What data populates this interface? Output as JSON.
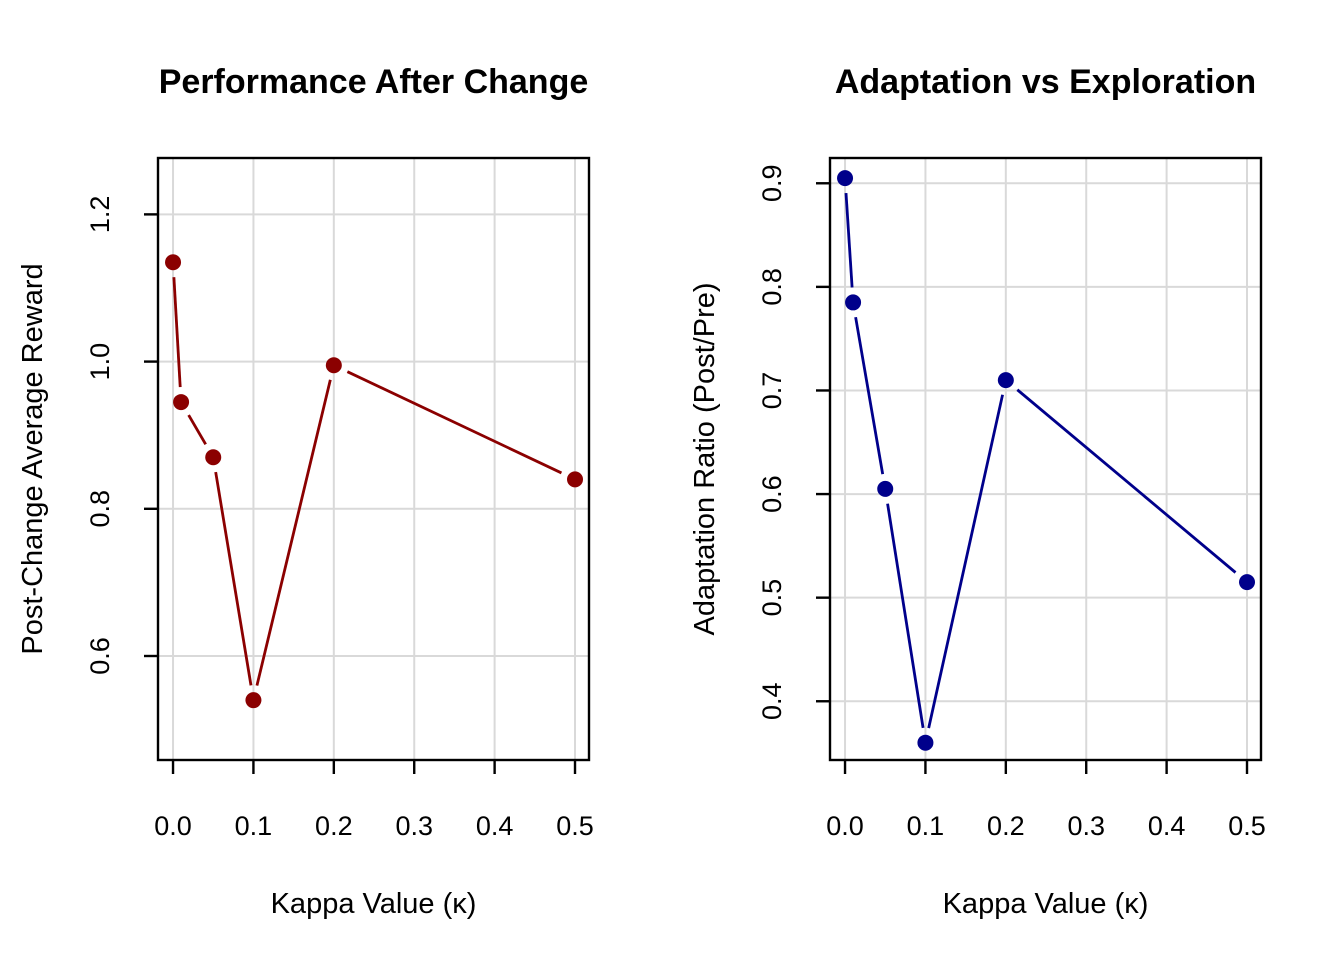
{
  "figure": {
    "background": "#FFFFFF",
    "axis_color": "#000000",
    "text_color": "#000000"
  },
  "chart_data": [
    {
      "type": "line",
      "title": "Performance After Change",
      "xlabel": "Kappa Value (κ)",
      "ylabel": "Post-Change Average Reward",
      "series_color": "#8B0000",
      "marker": "filled-circle",
      "line_type": "points-with-gapped-segments",
      "x": [
        0,
        0.01,
        0.05,
        0.1,
        0.2,
        0.5
      ],
      "values": [
        1.135,
        0.945,
        0.87,
        0.54,
        0.995,
        0.84
      ],
      "xticks": [
        0,
        0.1,
        0.2,
        0.3,
        0.4,
        0.5
      ],
      "xtick_labels": [
        "0.0",
        "0.1",
        "0.2",
        "0.3",
        "0.4",
        "0.5"
      ],
      "yticks": [
        0.6,
        0.8,
        1.0,
        1.2
      ],
      "ytick_labels": [
        "0.6",
        "0.8",
        "1.0",
        "1.2"
      ],
      "xlim": [
        -0.0187,
        0.5174
      ],
      "ylim": [
        0.4587,
        1.2766
      ],
      "grid": true,
      "grid_color": "#D9D9D9",
      "legend": "none"
    },
    {
      "type": "line",
      "title": "Adaptation vs Exploration",
      "xlabel": "Kappa Value (κ)",
      "ylabel": "Adaptation Ratio (Post/Pre)",
      "series_color": "#00008B",
      "marker": "filled-circle",
      "line_type": "points-with-gapped-segments",
      "x": [
        0,
        0.01,
        0.05,
        0.1,
        0.2,
        0.5
      ],
      "values": [
        0.905,
        0.785,
        0.605,
        0.36,
        0.71,
        0.515
      ],
      "xticks": [
        0,
        0.1,
        0.2,
        0.3,
        0.4,
        0.5
      ],
      "xtick_labels": [
        "0.0",
        "0.1",
        "0.2",
        "0.3",
        "0.4",
        "0.5"
      ],
      "yticks": [
        0.4,
        0.5,
        0.6,
        0.7,
        0.8,
        0.9
      ],
      "ytick_labels": [
        "0.4",
        "0.5",
        "0.6",
        "0.7",
        "0.8",
        "0.9"
      ],
      "xlim": [
        -0.0187,
        0.5174
      ],
      "ylim": [
        0.3433,
        0.9244
      ],
      "grid": true,
      "grid_color": "#D9D9D9",
      "legend": "none"
    }
  ]
}
